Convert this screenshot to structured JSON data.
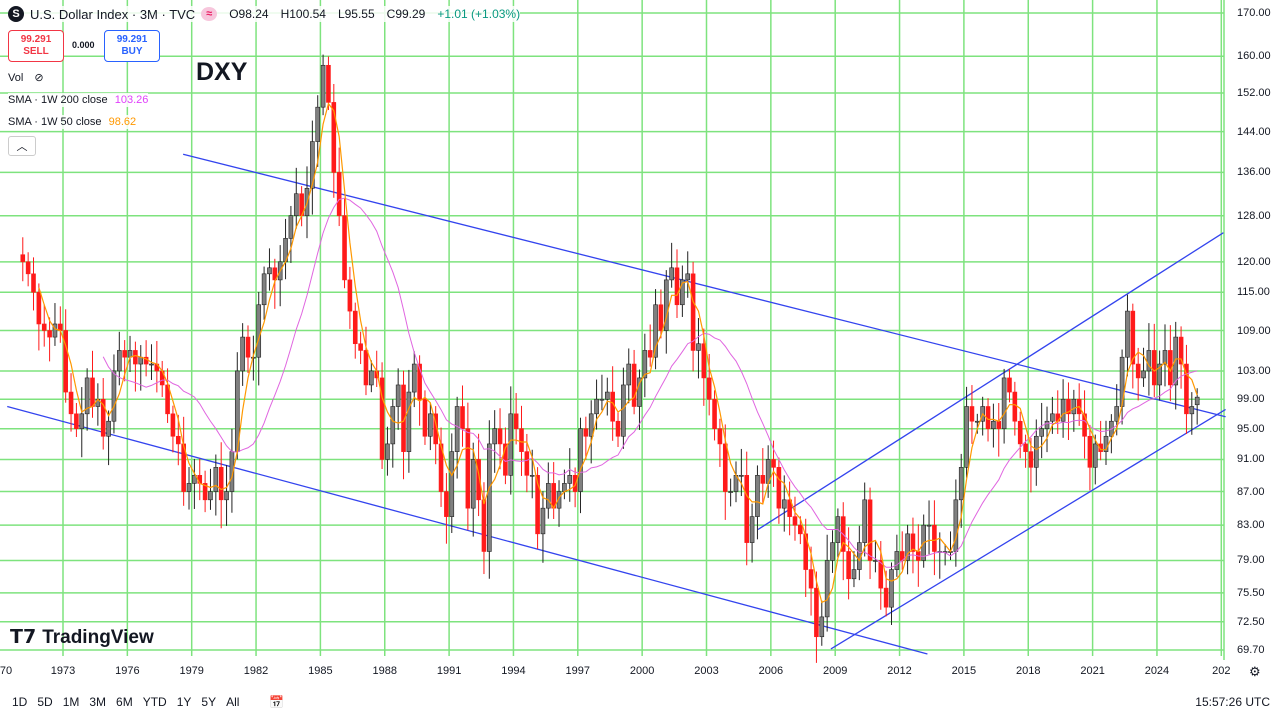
{
  "header": {
    "symbol_logo": "S",
    "title": "U.S. Dollar Index · 3M · TVC",
    "open": "O98.24",
    "high": "H100.54",
    "low": "L95.55",
    "close": "C99.29",
    "change": "+1.01 (+1.03%)"
  },
  "trade": {
    "sell_price": "99.291",
    "sell_label": "SELL",
    "spread": "0.000",
    "buy_price": "99.291",
    "buy_label": "BUY"
  },
  "watermark": "DXY",
  "legend": {
    "vol_label": "Vol",
    "sma200_label": "SMA · 1W 200 close",
    "sma200_value": "103.26",
    "sma50_label": "SMA · 1W 50 close",
    "sma50_value": "98.62",
    "collapse_icon": "chevron-up"
  },
  "logo_text": "TradingView",
  "colors": {
    "grid": "#7ee37e",
    "bear": "#ff1a1a",
    "bull": "#808080",
    "sma200": "#e066e0",
    "sma50": "#ff9800",
    "trendline": "#3344ee"
  },
  "chart_data": {
    "type": "candlestick",
    "interval": "3M",
    "scale": "log",
    "ylim": [
      69.7,
      170
    ],
    "grid": true,
    "y_ticks": [
      "170.00",
      "160.00",
      "152.00",
      "144.00",
      "136.00",
      "128.00",
      "120.00",
      "115.00",
      "109.00",
      "103.00",
      "99.00",
      "95.00",
      "91.00",
      "87.00",
      "83.00",
      "79.00",
      "75.50",
      "72.50",
      "69.70"
    ],
    "x_ticks": [
      "70",
      "1973",
      "1976",
      "1979",
      "1982",
      "1985",
      "1988",
      "1991",
      "1994",
      "1997",
      "2000",
      "2003",
      "2006",
      "2009",
      "2012",
      "2015",
      "2018",
      "2021",
      "2024",
      "202"
    ],
    "start_year": 1971,
    "quarterly_closes": [
      120,
      118,
      115,
      110,
      109,
      108,
      110,
      109,
      100,
      97,
      95,
      97,
      102,
      98,
      99,
      94,
      96,
      103,
      106,
      105,
      106,
      104,
      105,
      104,
      104,
      103,
      101,
      97,
      94,
      93,
      87,
      88,
      89,
      88,
      86,
      87,
      90,
      86,
      87,
      92,
      103,
      108,
      105,
      105,
      113,
      118,
      119,
      117,
      120,
      124,
      128,
      132,
      128,
      133,
      142,
      149,
      158,
      150,
      136,
      128,
      117,
      112,
      107,
      106,
      101,
      103,
      102,
      91,
      93,
      98,
      101,
      92,
      100,
      104,
      99,
      94,
      97,
      93,
      87,
      84,
      92,
      98,
      95,
      85,
      91,
      86,
      80,
      93,
      95,
      93,
      89,
      97,
      95,
      92,
      89,
      89,
      82,
      85,
      88,
      85,
      87,
      88,
      89,
      87,
      95,
      94,
      97,
      99,
      99,
      100,
      96,
      94,
      101,
      104,
      98,
      102,
      106,
      105,
      113,
      109,
      117,
      119,
      113,
      117,
      118,
      106,
      107,
      102,
      99,
      95,
      93,
      87,
      87,
      89,
      89,
      81,
      84,
      89,
      88,
      91,
      90,
      85,
      86,
      84,
      83,
      82,
      78,
      76,
      71,
      73,
      79,
      81,
      84,
      80,
      77,
      78,
      81,
      86,
      79,
      79,
      76,
      74,
      78,
      80,
      79,
      82,
      80,
      79,
      83,
      83,
      80,
      80,
      80,
      80,
      86,
      90,
      98,
      96,
      96,
      98,
      95,
      96,
      95,
      102,
      100,
      96,
      93,
      92,
      90,
      94,
      95,
      96,
      97,
      96,
      99,
      97,
      99,
      97,
      94,
      90,
      93,
      92,
      94,
      96,
      98,
      105,
      112,
      104,
      102,
      103,
      106,
      101,
      104,
      106,
      101,
      108,
      104,
      97,
      98,
      99.29
    ],
    "last_ohlc": {
      "open": 98.24,
      "high": 100.54,
      "low": 95.55,
      "close": 99.29
    },
    "indicators": [
      {
        "name": "SMA · 1W 200 close",
        "last": 103.26
      },
      {
        "name": "SMA · 1W 50 close",
        "last": 98.62
      }
    ],
    "trendlines": [
      {
        "from": [
          1978.6,
          139.5
        ],
        "to": [
          2027.2,
          96.6
        ]
      },
      {
        "from": [
          1970.4,
          98.0
        ],
        "to": [
          2013.3,
          69.3
        ]
      },
      {
        "from": [
          2005.4,
          82.5
        ],
        "to": [
          2027.1,
          125.0
        ]
      },
      {
        "from": [
          2008.8,
          69.8
        ],
        "to": [
          2027.2,
          97.6
        ]
      }
    ]
  },
  "bottom": {
    "ranges": [
      "1D",
      "5D",
      "1M",
      "3M",
      "6M",
      "YTD",
      "1Y",
      "5Y",
      "All"
    ],
    "clock": "15:57:26 UTC"
  }
}
